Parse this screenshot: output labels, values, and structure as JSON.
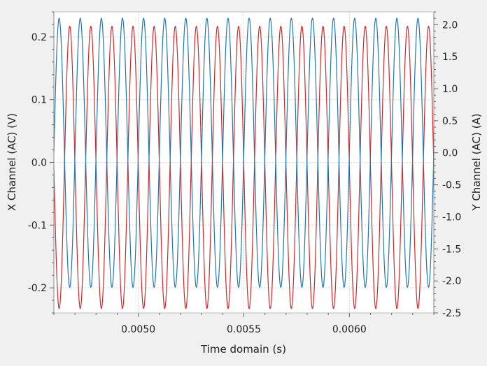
{
  "chart_data": {
    "type": "line",
    "title": "",
    "xlabel": "Time domain (s)",
    "ylabel_left": "X Channel (AC) (V)",
    "ylabel_right": "Y Channel (AC) (A)",
    "xlim": [
      0.0046,
      0.0064
    ],
    "ylim_left": [
      -0.24,
      0.24
    ],
    "ylim_right": [
      -2.5,
      2.2
    ],
    "x_ticks": [
      0.005,
      0.0055,
      0.006
    ],
    "x_tick_labels": [
      "0.0050",
      "0.0055",
      "0.0060"
    ],
    "y_left_ticks": [
      0.2,
      0.1,
      0.0,
      -0.1,
      -0.2
    ],
    "y_left_tick_labels": [
      "0.2",
      "0.1",
      "0.0",
      "-0.1",
      "-0.2"
    ],
    "y_right_ticks": [
      2.0,
      1.5,
      1.0,
      0.5,
      0.0,
      -0.5,
      -1.0,
      -1.5,
      -2.0,
      -2.5
    ],
    "y_right_tick_labels": [
      "2.0",
      "1.5",
      "1.0",
      "0.5",
      "0.0",
      "-0.5",
      "-1.0",
      "-1.5",
      "-2.0",
      "-2.5"
    ],
    "grid": true,
    "legend": "none",
    "series": [
      {
        "axis": "left",
        "color": "#d62728",
        "waveform": "sine",
        "frequency_hz": 10000,
        "amplitude": 0.225,
        "offset": -0.008,
        "peak_time_s": 0.004675
      },
      {
        "axis": "right",
        "color": "#1f77b4",
        "waveform": "sine",
        "frequency_hz": 10000,
        "amplitude": 2.1,
        "offset": 0.0,
        "peak_time_s": 0.004625
      }
    ]
  }
}
